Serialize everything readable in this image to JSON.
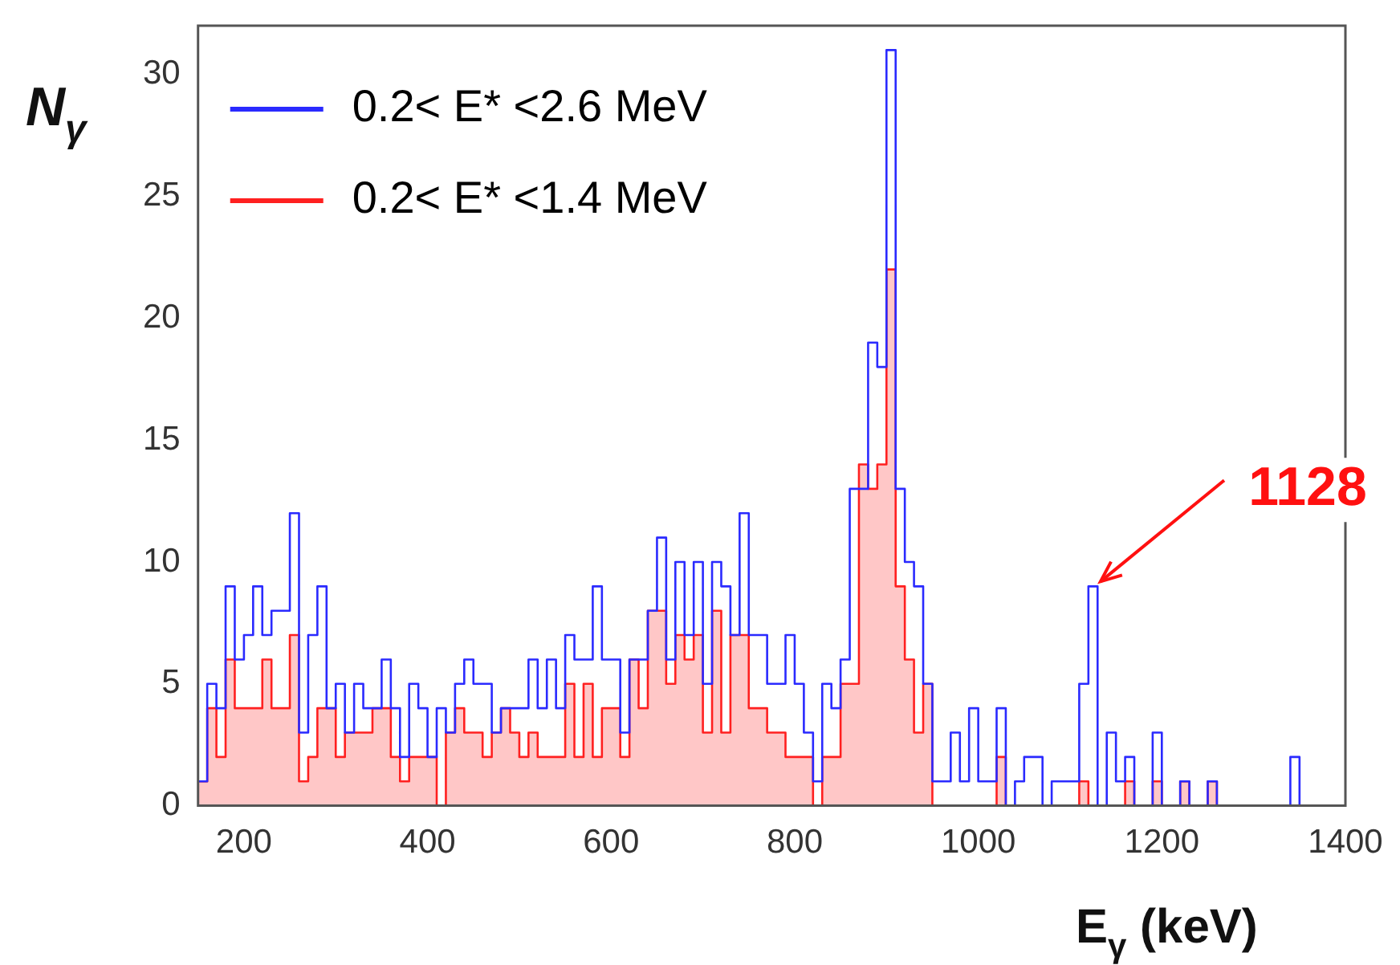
{
  "chart_data": {
    "type": "histogram",
    "xlabel": "E$_{γ}$ (keV)",
    "ylabel": "N$_{γ}$",
    "legend": "top left",
    "bins": [
      150,
      160,
      170,
      180,
      190,
      200,
      210,
      220,
      230,
      240,
      250,
      260,
      270,
      280,
      290,
      300,
      310,
      320,
      330,
      340,
      350,
      360,
      370,
      380,
      390,
      400,
      410,
      420,
      430,
      440,
      450,
      460,
      470,
      480,
      490,
      500,
      510,
      520,
      530,
      540,
      550,
      560,
      570,
      580,
      590,
      600,
      610,
      620,
      630,
      640,
      650,
      660,
      670,
      680,
      690,
      700,
      710,
      720,
      730,
      740,
      750,
      760,
      770,
      780,
      790,
      800,
      810,
      820,
      830,
      840,
      850,
      860,
      870,
      880,
      890,
      900,
      910,
      920,
      930,
      940,
      950,
      960,
      970,
      980,
      990,
      1000,
      1010,
      1020,
      1030,
      1040,
      1050,
      1060,
      1070,
      1080,
      1090,
      1100,
      1110,
      1120,
      1130,
      1140,
      1150,
      1160,
      1170,
      1180,
      1190,
      1200,
      1210,
      1220,
      1230,
      1240,
      1250,
      1260,
      1270,
      1280,
      1290,
      1300,
      1310,
      1320,
      1330,
      1340,
      1350,
      1360,
      1370,
      1380,
      1390,
      1400
    ],
    "series": [
      {
        "name": "0.2< E* <2.6 MeV",
        "color": "#2a2aff",
        "values": [
          1,
          5,
          4,
          9,
          6,
          7,
          9,
          7,
          8,
          8,
          12,
          3,
          7,
          9,
          4,
          5,
          3,
          5,
          4,
          4,
          6,
          4,
          2,
          5,
          4,
          2,
          4,
          3,
          5,
          6,
          5,
          5,
          3,
          4,
          4,
          4,
          6,
          4,
          6,
          4,
          7,
          6,
          6,
          9,
          6,
          6,
          3,
          6,
          6,
          8,
          11,
          6,
          10,
          7,
          10,
          5,
          10,
          9,
          7,
          12,
          7,
          7,
          5,
          5,
          7,
          5,
          3,
          1,
          5,
          4,
          6,
          13,
          13,
          19,
          18,
          31,
          13,
          10,
          9,
          5,
          1,
          1,
          3,
          1,
          4,
          1,
          1,
          4,
          0,
          1,
          2,
          2,
          0,
          1,
          1,
          1,
          5,
          9,
          0,
          3,
          1,
          2,
          0,
          0,
          3,
          0,
          0,
          1,
          0,
          0,
          1,
          0,
          0,
          0,
          0,
          0,
          0,
          0,
          0,
          2,
          0,
          0,
          0,
          0,
          0
        ]
      },
      {
        "name": "0.2< E* <1.4 MeV",
        "color": "#ff2020",
        "values": [
          1,
          4,
          2,
          6,
          4,
          4,
          4,
          6,
          4,
          4,
          7,
          1,
          2,
          4,
          4,
          2,
          3,
          3,
          3,
          4,
          4,
          2,
          1,
          2,
          2,
          2,
          0,
          3,
          4,
          3,
          3,
          2,
          3,
          4,
          3,
          2,
          3,
          2,
          2,
          2,
          5,
          2,
          5,
          2,
          4,
          4,
          2,
          6,
          4,
          8,
          8,
          5,
          7,
          6,
          7,
          3,
          8,
          3,
          7,
          7,
          4,
          4,
          3,
          3,
          2,
          2,
          2,
          0,
          2,
          2,
          5,
          5,
          14,
          13,
          14,
          22,
          9,
          6,
          3,
          5,
          0,
          0,
          0,
          0,
          0,
          0,
          0,
          2,
          0,
          0,
          0,
          0,
          0,
          0,
          0,
          0,
          1,
          0,
          0,
          0,
          0,
          1,
          0,
          0,
          1,
          0,
          0,
          1,
          0,
          0,
          1,
          0,
          0,
          0,
          0,
          0,
          0,
          0,
          0,
          0,
          0,
          0,
          0,
          0,
          0
        ]
      }
    ],
    "xlim": [
      150,
      1400
    ],
    "xticks": [
      200,
      400,
      600,
      800,
      1000,
      1200,
      1400
    ],
    "ylim": [
      0,
      32
    ],
    "yticks": [
      0,
      5,
      10,
      15,
      20,
      25,
      30
    ],
    "annotations": [
      {
        "text": "1128",
        "x": 1128,
        "y": 9
      }
    ]
  }
}
